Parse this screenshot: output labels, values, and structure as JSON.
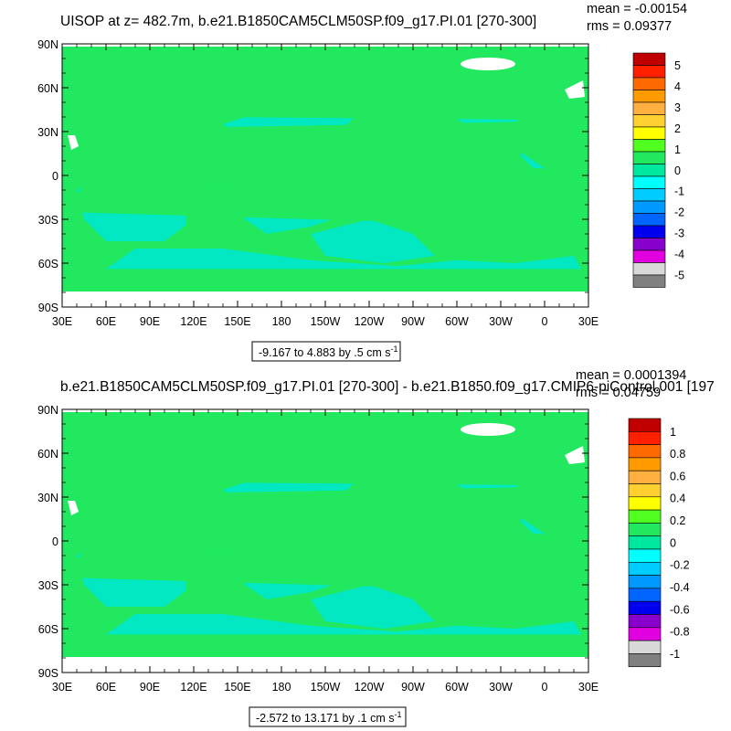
{
  "chart_data": [
    {
      "type": "heatmap",
      "title": "UISOP at z= 482.7m, b.e21.B1850CAM5CLM50SP.f09_g17.PI.01 [270-300]",
      "stats": {
        "mean": "mean = -0.00154",
        "rms": "rms = 0.09377"
      },
      "range_label": "-9.167 to 4.883 by .5 cm s",
      "range_unit_sup": "-1",
      "x_ticks": [
        "30E",
        "60E",
        "90E",
        "120E",
        "150E",
        "180",
        "150W",
        "120W",
        "90W",
        "60W",
        "30W",
        "0",
        "30E"
      ],
      "y_ticks": [
        "90N",
        "60N",
        "30N",
        "0",
        "30S",
        "60S",
        "90S"
      ],
      "colorbar_labels": [
        "5",
        "4",
        "3",
        "2",
        "1",
        "0",
        "-1",
        "-2",
        "-3",
        "-4",
        "-5"
      ],
      "colorbar_colors": [
        "#c00000",
        "#ff2000",
        "#ff6a00",
        "#ff9a00",
        "#ffb040",
        "#ffd030",
        "#ffff00",
        "#50ff20",
        "#22e860",
        "#00e8a0",
        "#00ffff",
        "#00ccff",
        "#0099ff",
        "#0066ff",
        "#0000ee",
        "#8800cc",
        "#e000e0",
        "#d8d8d8",
        "#808080"
      ],
      "field_note": "ocean mostly 0 to -0.5 (green/cyan)"
    },
    {
      "type": "heatmap",
      "title": "b.e21.B1850CAM5CLM50SP.f09_g17.PI.01 [270-300] - b.e21.B1850.f09_g17.CMIP6-piControl.001 [197",
      "stats": {
        "mean": "mean = 0.0001394",
        "rms": "rms = 0.04759"
      },
      "range_label": "-2.572 to 13.171 by .1 cm s",
      "range_unit_sup": "-1",
      "x_ticks": [
        "30E",
        "60E",
        "90E",
        "120E",
        "150E",
        "180",
        "150W",
        "120W",
        "90W",
        "60W",
        "30W",
        "0",
        "30E"
      ],
      "y_ticks": [
        "90N",
        "60N",
        "30N",
        "0",
        "30S",
        "60S",
        "90S"
      ],
      "colorbar_labels": [
        "1",
        "0.8",
        "0.6",
        "0.4",
        "0.2",
        "0",
        "-0.2",
        "-0.4",
        "-0.6",
        "-0.8",
        "-1"
      ],
      "colorbar_colors": [
        "#c00000",
        "#ff2000",
        "#ff6a00",
        "#ff9a00",
        "#ffb040",
        "#ffd030",
        "#ffff00",
        "#50ff20",
        "#22e860",
        "#00e8a0",
        "#00ffff",
        "#00ccff",
        "#0099ff",
        "#0066ff",
        "#0000ee",
        "#8800cc",
        "#e000e0",
        "#d8d8d8",
        "#808080"
      ],
      "field_note": "ocean mostly 0 to -0.1 (green/cyan)"
    }
  ],
  "colors": {
    "field_green": "#22e860",
    "field_cyan": "#00e8c8",
    "land": "#ffffff"
  }
}
